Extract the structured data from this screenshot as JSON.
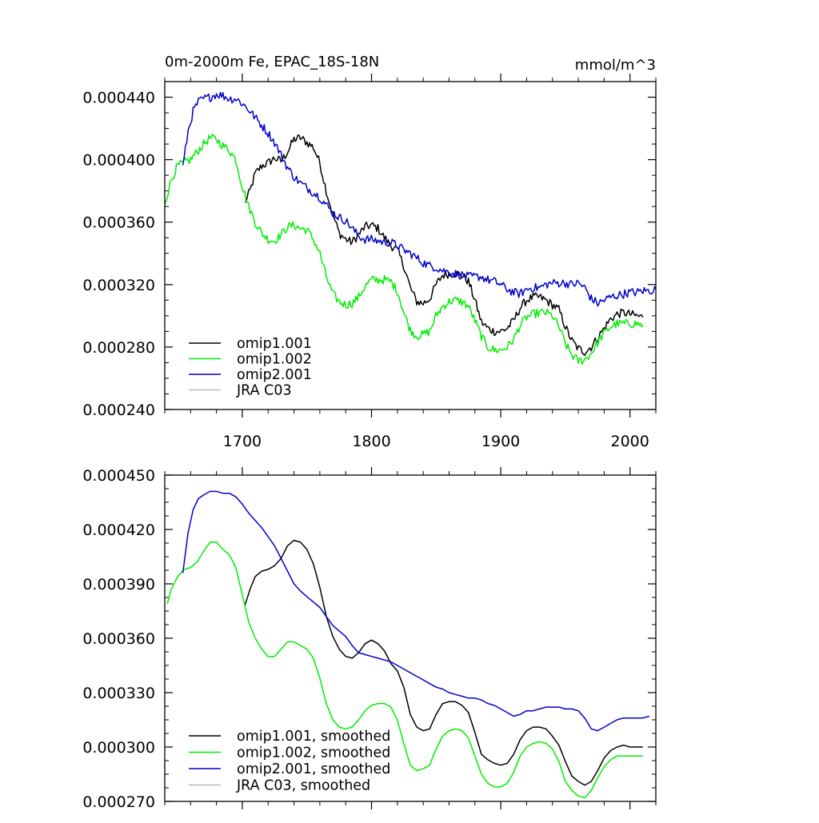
{
  "chart_data": [
    {
      "type": "line",
      "title": "0m-2000m Fe, EPAC_18S-18N",
      "units": "mmol/m^3",
      "xlim": [
        1640,
        2020
      ],
      "ylim": [
        0.00024,
        0.00045
      ],
      "x_ticks": [
        1700,
        1800,
        1900,
        2000
      ],
      "y_ticks": [
        0.00024,
        0.00028,
        0.00032,
        0.00036,
        0.0004,
        0.00044
      ],
      "y_tick_labels": [
        "0.000240",
        "0.000280",
        "0.000320",
        "0.000360",
        "0.000400",
        "0.000440"
      ],
      "legend_position": "bottom-left",
      "series": [
        {
          "name": "omip1.001",
          "color": "#000000",
          "x": [
            1702,
            1706,
            1710,
            1715,
            1720,
            1725,
            1730,
            1735,
            1740,
            1745,
            1750,
            1755,
            1760,
            1765,
            1770,
            1775,
            1780,
            1785,
            1790,
            1795,
            1800,
            1805,
            1810,
            1815,
            1820,
            1825,
            1830,
            1835,
            1840,
            1845,
            1850,
            1855,
            1860,
            1865,
            1870,
            1875,
            1880,
            1885,
            1890,
            1895,
            1900,
            1905,
            1910,
            1915,
            1920,
            1925,
            1930,
            1935,
            1940,
            1945,
            1950,
            1955,
            1960,
            1965,
            1970,
            1975,
            1980,
            1985,
            1990,
            1995,
            2000,
            2005,
            2010
          ],
          "y": [
            0.000372,
            0.00038,
            0.000391,
            0.000396,
            0.000398,
            0.000401,
            0.000399,
            0.000405,
            0.000413,
            0.000414,
            0.000411,
            0.000408,
            0.000398,
            0.00038,
            0.000365,
            0.000353,
            0.000349,
            0.000347,
            0.000352,
            0.000357,
            0.000358,
            0.000356,
            0.00035,
            0.000345,
            0.000342,
            0.000332,
            0.000318,
            0.000309,
            0.000308,
            0.000311,
            0.00032,
            0.000326,
            0.000327,
            0.000327,
            0.000326,
            0.000322,
            0.00031,
            0.000296,
            0.000292,
            0.00029,
            0.00029,
            0.000292,
            0.000297,
            0.000305,
            0.00031,
            0.000312,
            0.000312,
            0.00031,
            0.000307,
            0.000304,
            0.000293,
            0.000284,
            0.000279,
            0.000277,
            0.00028,
            0.000286,
            0.000292,
            0.000298,
            0.000301,
            0.000302,
            0.000301,
            0.0003,
            0.000299
          ],
          "noise": 2.8e-06
        },
        {
          "name": "omip1.002",
          "color": "#00ee00",
          "x": [
            1640,
            1645,
            1650,
            1655,
            1660,
            1665,
            1670,
            1675,
            1680,
            1685,
            1690,
            1695,
            1700,
            1705,
            1710,
            1715,
            1720,
            1725,
            1730,
            1735,
            1740,
            1745,
            1750,
            1755,
            1760,
            1765,
            1770,
            1775,
            1780,
            1785,
            1790,
            1795,
            1800,
            1805,
            1810,
            1815,
            1820,
            1825,
            1830,
            1835,
            1840,
            1845,
            1850,
            1855,
            1860,
            1865,
            1870,
            1875,
            1880,
            1885,
            1890,
            1895,
            1900,
            1905,
            1910,
            1915,
            1920,
            1925,
            1930,
            1935,
            1940,
            1945,
            1950,
            1955,
            1960,
            1965,
            1970,
            1975,
            1980,
            1985,
            1990,
            1995,
            2000,
            2005,
            2010
          ],
          "y": [
            0.000372,
            0.000387,
            0.000396,
            0.000398,
            0.0004,
            0.000405,
            0.00041,
            0.000414,
            0.000413,
            0.000409,
            0.000406,
            0.0004,
            0.000383,
            0.00037,
            0.00036,
            0.000353,
            0.000349,
            0.000348,
            0.000352,
            0.000357,
            0.000358,
            0.000356,
            0.000355,
            0.000349,
            0.00034,
            0.000325,
            0.000314,
            0.000309,
            0.000307,
            0.000308,
            0.000312,
            0.000319,
            0.000323,
            0.000323,
            0.000323,
            0.000322,
            0.000316,
            0.000302,
            0.000291,
            0.000287,
            0.000288,
            0.00029,
            0.0003,
            0.000306,
            0.000309,
            0.00031,
            0.000309,
            0.000306,
            0.000297,
            0.000287,
            0.00028,
            0.000278,
            0.000278,
            0.00028,
            0.000285,
            0.000294,
            0.000299,
            0.000301,
            0.000302,
            0.000302,
            0.0003,
            0.000293,
            0.000282,
            0.000275,
            0.000271,
            0.000272,
            0.000276,
            0.000283,
            0.000289,
            0.000293,
            0.000295,
            0.000295,
            0.000295,
            0.000295,
            0.000294
          ],
          "noise": 2.8e-06
        },
        {
          "name": "omip2.001",
          "color": "#0000cc",
          "x": [
            1654,
            1658,
            1662,
            1666,
            1670,
            1675,
            1680,
            1685,
            1690,
            1695,
            1700,
            1705,
            1710,
            1715,
            1720,
            1725,
            1730,
            1735,
            1740,
            1745,
            1750,
            1755,
            1760,
            1765,
            1770,
            1775,
            1780,
            1785,
            1790,
            1795,
            1800,
            1805,
            1810,
            1815,
            1820,
            1825,
            1830,
            1835,
            1840,
            1845,
            1850,
            1855,
            1860,
            1865,
            1870,
            1875,
            1880,
            1885,
            1890,
            1895,
            1900,
            1905,
            1910,
            1915,
            1920,
            1925,
            1930,
            1935,
            1940,
            1945,
            1950,
            1955,
            1960,
            1965,
            1970,
            1975,
            1980,
            1985,
            1990,
            1995,
            2000,
            2005,
            2010,
            2015,
            2020
          ],
          "y": [
            0.000395,
            0.000418,
            0.000431,
            0.000437,
            0.000439,
            0.00044,
            0.000442,
            0.000441,
            0.000439,
            0.000439,
            0.000436,
            0.000432,
            0.000427,
            0.000422,
            0.000417,
            0.000411,
            0.000403,
            0.000395,
            0.000389,
            0.000385,
            0.000382,
            0.000379,
            0.000376,
            0.000371,
            0.000366,
            0.000363,
            0.000361,
            0.000356,
            0.000351,
            0.000349,
            0.000349,
            0.000348,
            0.000347,
            0.000347,
            0.000345,
            0.000342,
            0.00034,
            0.000337,
            0.000334,
            0.000332,
            0.000331,
            0.000329,
            0.000328,
            0.000327,
            0.000326,
            0.000325,
            0.000325,
            0.000325,
            0.000323,
            0.000322,
            0.00032,
            0.000317,
            0.000315,
            0.000314,
            0.000317,
            0.000318,
            0.000318,
            0.00032,
            0.000321,
            0.000321,
            0.000321,
            0.00032,
            0.000321,
            0.000318,
            0.000311,
            0.000308,
            0.00031,
            0.000312,
            0.000313,
            0.000314,
            0.000315,
            0.000315,
            0.000316,
            0.000316,
            0.000317
          ],
          "noise": 2.8e-06
        },
        {
          "name": "JRA C03",
          "color": "#bbbbbb",
          "x": [],
          "y": []
        }
      ]
    },
    {
      "type": "line",
      "title": "",
      "units": "",
      "xlim": [
        1640,
        2020
      ],
      "ylim": [
        0.00027,
        0.00045
      ],
      "x_ticks": [
        1700,
        1800,
        1900,
        2000
      ],
      "y_ticks": [
        0.00027,
        0.0003,
        0.00033,
        0.00036,
        0.00039,
        0.00042,
        0.00045
      ],
      "y_tick_labels": [
        "0.000270",
        "0.000300",
        "0.000330",
        "0.000360",
        "0.000390",
        "0.000420",
        "0.000450"
      ],
      "legend_position": "bottom-left",
      "series": [
        {
          "name": "omip1.001, smoothed",
          "color": "#000000",
          "x": [
            1702,
            1706,
            1710,
            1715,
            1720,
            1725,
            1730,
            1735,
            1740,
            1745,
            1750,
            1755,
            1760,
            1765,
            1770,
            1775,
            1780,
            1785,
            1790,
            1795,
            1800,
            1805,
            1810,
            1815,
            1820,
            1825,
            1830,
            1835,
            1840,
            1845,
            1850,
            1855,
            1860,
            1865,
            1870,
            1875,
            1880,
            1885,
            1890,
            1895,
            1900,
            1905,
            1910,
            1915,
            1920,
            1925,
            1930,
            1935,
            1940,
            1945,
            1950,
            1955,
            1960,
            1965,
            1970,
            1975,
            1980,
            1985,
            1990,
            1995,
            2000,
            2005,
            2010
          ],
          "y": [
            0.000378,
            0.000387,
            0.000394,
            0.000397,
            0.000398,
            0.0004,
            0.000404,
            0.000411,
            0.000414,
            0.000413,
            0.000409,
            0.000401,
            0.000388,
            0.000372,
            0.000361,
            0.000354,
            0.00035,
            0.000349,
            0.000352,
            0.000357,
            0.000359,
            0.000357,
            0.000353,
            0.000346,
            0.000342,
            0.000333,
            0.000318,
            0.000311,
            0.000309,
            0.00031,
            0.000318,
            0.000324,
            0.000325,
            0.000325,
            0.000323,
            0.000319,
            0.000308,
            0.000296,
            0.000293,
            0.000291,
            0.00029,
            0.000291,
            0.000296,
            0.000304,
            0.000309,
            0.000311,
            0.000311,
            0.00031,
            0.000306,
            0.000301,
            0.000292,
            0.000284,
            0.000281,
            0.000279,
            0.000281,
            0.000287,
            0.000294,
            0.000298,
            0.0003,
            0.000301,
            0.0003,
            0.0003,
            0.0003
          ]
        },
        {
          "name": "omip1.002, smoothed",
          "color": "#00ee00",
          "x": [
            1642,
            1645,
            1650,
            1655,
            1660,
            1665,
            1670,
            1675,
            1680,
            1685,
            1690,
            1695,
            1700,
            1705,
            1710,
            1715,
            1720,
            1725,
            1730,
            1735,
            1740,
            1745,
            1750,
            1755,
            1760,
            1765,
            1770,
            1775,
            1780,
            1785,
            1790,
            1795,
            1800,
            1805,
            1810,
            1815,
            1820,
            1825,
            1830,
            1835,
            1840,
            1845,
            1850,
            1855,
            1860,
            1865,
            1870,
            1875,
            1880,
            1885,
            1890,
            1895,
            1900,
            1905,
            1910,
            1915,
            1920,
            1925,
            1930,
            1935,
            1940,
            1945,
            1950,
            1955,
            1960,
            1965,
            1970,
            1975,
            1980,
            1985,
            1990,
            1995,
            2000,
            2005,
            2010
          ],
          "y": [
            0.000379,
            0.000387,
            0.000394,
            0.000398,
            0.000399,
            0.000402,
            0.000408,
            0.000413,
            0.000413,
            0.000409,
            0.000406,
            0.000399,
            0.000384,
            0.000369,
            0.00036,
            0.000354,
            0.00035,
            0.00035,
            0.000354,
            0.000358,
            0.000358,
            0.000356,
            0.000354,
            0.000349,
            0.000338,
            0.000324,
            0.000315,
            0.000311,
            0.00031,
            0.000311,
            0.000315,
            0.00032,
            0.000323,
            0.000324,
            0.000324,
            0.000322,
            0.000315,
            0.000302,
            0.00029,
            0.000287,
            0.000288,
            0.00029,
            0.000299,
            0.000306,
            0.000309,
            0.00031,
            0.000309,
            0.000305,
            0.000295,
            0.000285,
            0.00028,
            0.000278,
            0.000278,
            0.00028,
            0.000286,
            0.000295,
            0.0003,
            0.000302,
            0.000303,
            0.000302,
            0.000299,
            0.000292,
            0.000281,
            0.000276,
            0.000273,
            0.000272,
            0.000276,
            0.000283,
            0.000289,
            0.000293,
            0.000295,
            0.000295,
            0.000295,
            0.000295,
            0.000295
          ]
        },
        {
          "name": "omip2.001, smoothed",
          "color": "#0000cc",
          "x": [
            1654,
            1658,
            1662,
            1666,
            1670,
            1675,
            1680,
            1685,
            1690,
            1695,
            1700,
            1705,
            1710,
            1715,
            1720,
            1725,
            1730,
            1735,
            1740,
            1745,
            1750,
            1755,
            1760,
            1765,
            1770,
            1775,
            1780,
            1785,
            1790,
            1795,
            1800,
            1805,
            1810,
            1815,
            1820,
            1825,
            1830,
            1835,
            1840,
            1845,
            1850,
            1855,
            1860,
            1865,
            1870,
            1875,
            1880,
            1885,
            1890,
            1895,
            1900,
            1905,
            1910,
            1915,
            1920,
            1925,
            1930,
            1935,
            1940,
            1945,
            1950,
            1955,
            1960,
            1965,
            1970,
            1975,
            1980,
            1985,
            1990,
            1995,
            2000,
            2005,
            2010,
            2015
          ],
          "y": [
            0.000396,
            0.000418,
            0.000431,
            0.000437,
            0.000439,
            0.000441,
            0.000441,
            0.00044,
            0.00044,
            0.000438,
            0.000434,
            0.000429,
            0.000425,
            0.000421,
            0.000416,
            0.000411,
            0.000404,
            0.000397,
            0.00039,
            0.000386,
            0.000383,
            0.00038,
            0.000377,
            0.000372,
            0.000367,
            0.000364,
            0.000361,
            0.000356,
            0.000352,
            0.000351,
            0.00035,
            0.000349,
            0.000348,
            0.000347,
            0.000345,
            0.000343,
            0.000341,
            0.000339,
            0.000337,
            0.000335,
            0.000333,
            0.000332,
            0.00033,
            0.000329,
            0.000328,
            0.000327,
            0.000327,
            0.000326,
            0.000324,
            0.000323,
            0.000321,
            0.000319,
            0.000317,
            0.000318,
            0.00032,
            0.00032,
            0.000321,
            0.000322,
            0.000322,
            0.000322,
            0.000321,
            0.000321,
            0.00032,
            0.000316,
            0.00031,
            0.000309,
            0.000311,
            0.000313,
            0.000315,
            0.000316,
            0.000316,
            0.000316,
            0.000316,
            0.000317
          ]
        },
        {
          "name": "JRA C03, smoothed",
          "color": "#bbbbbb",
          "x": [],
          "y": []
        }
      ]
    }
  ]
}
